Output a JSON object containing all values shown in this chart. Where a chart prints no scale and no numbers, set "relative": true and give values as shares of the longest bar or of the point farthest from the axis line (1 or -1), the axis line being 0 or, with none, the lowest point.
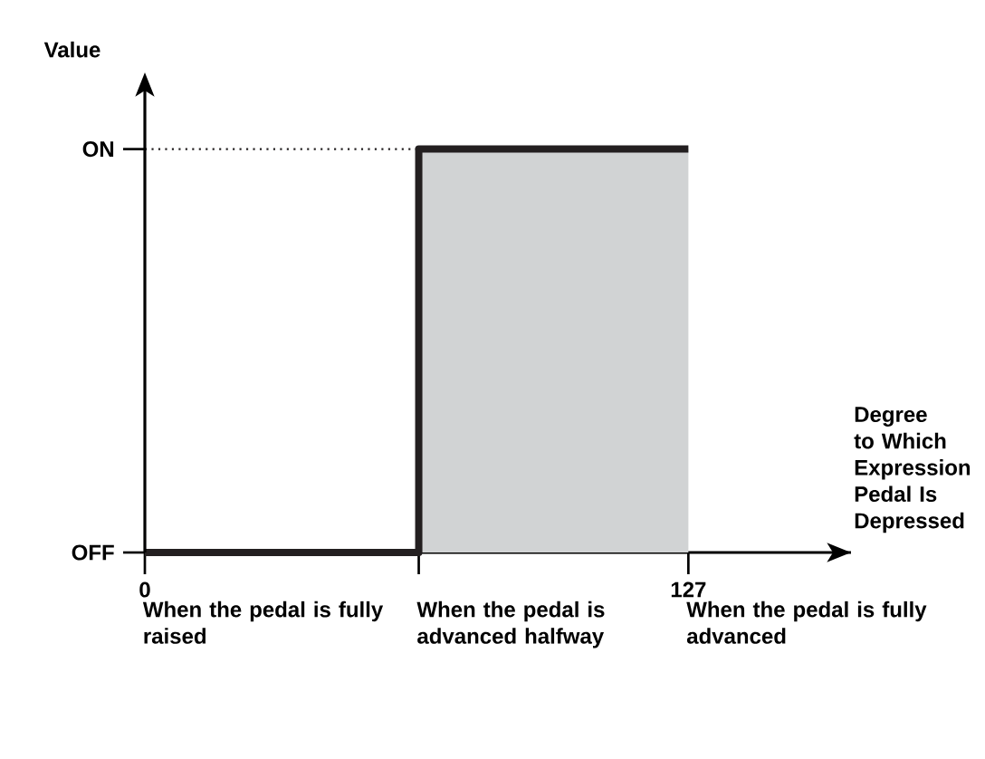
{
  "chart_data": {
    "type": "step",
    "xlabel": "Degree to Which Expression Pedal Is Depressed",
    "ylabel": "Value",
    "x": [
      0,
      64,
      127
    ],
    "series": [
      {
        "color": "#231f20",
        "values": [
          0,
          1,
          1
        ]
      }
    ],
    "xlim": [
      0,
      165
    ],
    "relative": true,
    "xticks": [
      0,
      {
        "value": 64,
        "label": null
      },
      127
    ],
    "ref_lines": [
      {
        "axis": "y",
        "value": 1,
        "line_style": "dotted",
        "color": "#231f20"
      }
    ],
    "bands": [
      {
        "axis": "x",
        "from": 64,
        "to": 127,
        "color": "#d1d3d4"
      }
    ],
    "annotations": [
      "OFF",
      "ON",
      "When the pedal is fully raised",
      "When the pedal is advanced halfway",
      "When the pedal is fully advanced"
    ]
  }
}
